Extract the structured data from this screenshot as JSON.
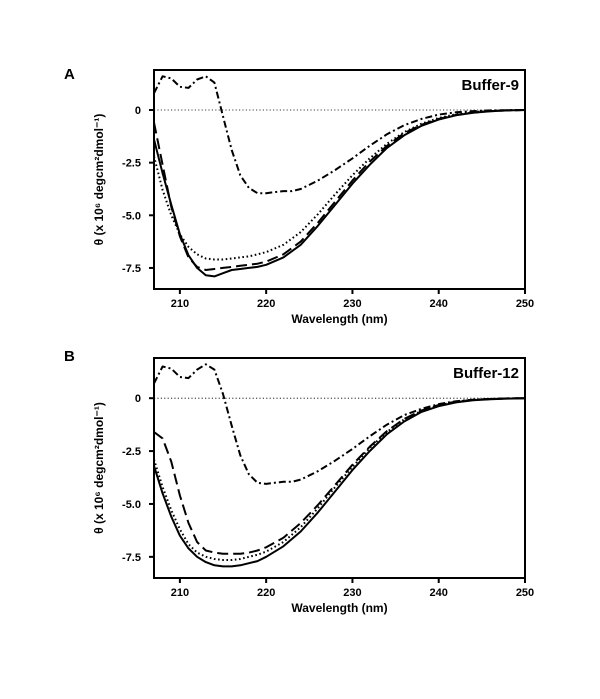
{
  "chart_data": [
    {
      "type": "line",
      "panel": "A",
      "title": "Buffer-9",
      "xlabel": "Wavelength (nm)",
      "ylabel": "θ (x 10⁶ degcm²dmol⁻¹)",
      "xlim": [
        207,
        250
      ],
      "ylim": [
        -8.5,
        1.9
      ],
      "x_ticks": [
        210,
        220,
        230,
        240,
        250
      ],
      "y_ticks": [
        0,
        -2.5,
        -5.0,
        -7.5
      ],
      "y_tick_labels": [
        "0",
        "-2.5",
        "-5.0",
        "-7.5"
      ],
      "series": [
        {
          "name": "solid",
          "style": "solid",
          "x": [
            207,
            208,
            209,
            210,
            211,
            212,
            213,
            214,
            215,
            216,
            217,
            218,
            219,
            220,
            222,
            224,
            226,
            228,
            230,
            232,
            234,
            236,
            238,
            240,
            242,
            244,
            246,
            248,
            250
          ],
          "y": [
            -1.4,
            -3.0,
            -4.5,
            -5.9,
            -6.9,
            -7.5,
            -7.85,
            -7.9,
            -7.75,
            -7.6,
            -7.55,
            -7.5,
            -7.45,
            -7.35,
            -7.0,
            -6.4,
            -5.5,
            -4.5,
            -3.5,
            -2.6,
            -1.8,
            -1.2,
            -0.75,
            -0.45,
            -0.25,
            -0.13,
            -0.06,
            -0.02,
            0.0
          ]
        },
        {
          "name": "dashed",
          "style": "dashed",
          "x": [
            207,
            208,
            209,
            210,
            211,
            212,
            213,
            214,
            215,
            216,
            217,
            218,
            219,
            220,
            222,
            224,
            226,
            228,
            230,
            232,
            234,
            236,
            238,
            240,
            242,
            244,
            246,
            248,
            250
          ],
          "y": [
            -0.6,
            -2.6,
            -4.6,
            -6.0,
            -7.0,
            -7.45,
            -7.6,
            -7.55,
            -7.5,
            -7.45,
            -7.4,
            -7.35,
            -7.3,
            -7.2,
            -6.85,
            -6.25,
            -5.35,
            -4.35,
            -3.35,
            -2.45,
            -1.7,
            -1.1,
            -0.7,
            -0.42,
            -0.23,
            -0.12,
            -0.05,
            -0.02,
            0.0
          ]
        },
        {
          "name": "dotted",
          "style": "dotted",
          "x": [
            207,
            208,
            209,
            210,
            211,
            212,
            213,
            214,
            215,
            216,
            217,
            218,
            219,
            220,
            222,
            224,
            226,
            228,
            230,
            232,
            234,
            236,
            238,
            240,
            242,
            244,
            246,
            248,
            250
          ],
          "y": [
            -2.2,
            -3.8,
            -5.0,
            -5.9,
            -6.5,
            -6.85,
            -7.05,
            -7.1,
            -7.1,
            -7.05,
            -7.0,
            -6.95,
            -6.85,
            -6.75,
            -6.4,
            -5.8,
            -4.95,
            -4.0,
            -3.1,
            -2.3,
            -1.6,
            -1.05,
            -0.65,
            -0.38,
            -0.2,
            -0.1,
            -0.04,
            -0.01,
            0.0
          ]
        },
        {
          "name": "dash-dot",
          "style": "dash-dot",
          "x": [
            207,
            208,
            209,
            210,
            211,
            212,
            213,
            214,
            215,
            216,
            217,
            218,
            219,
            220,
            221,
            222,
            223,
            224,
            226,
            228,
            230,
            232,
            234,
            236,
            238,
            240,
            242,
            244,
            246,
            248,
            250
          ],
          "y": [
            0.8,
            1.6,
            1.5,
            1.1,
            1.05,
            1.45,
            1.6,
            1.3,
            -0.3,
            -1.9,
            -3.1,
            -3.7,
            -3.95,
            -3.95,
            -3.9,
            -3.85,
            -3.85,
            -3.75,
            -3.35,
            -2.85,
            -2.3,
            -1.7,
            -1.15,
            -0.72,
            -0.42,
            -0.22,
            -0.11,
            -0.05,
            -0.02,
            -0.01,
            0.0
          ]
        }
      ]
    },
    {
      "type": "line",
      "panel": "B",
      "title": "Buffer-12",
      "xlabel": "Wavelength (nm)",
      "ylabel": "θ (x 10⁶ degcm²dmol⁻¹)",
      "xlim": [
        207,
        250
      ],
      "ylim": [
        -8.5,
        1.9
      ],
      "x_ticks": [
        210,
        220,
        230,
        240,
        250
      ],
      "y_ticks": [
        0,
        -2.5,
        -5.0,
        -7.5
      ],
      "y_tick_labels": [
        "0",
        "-2.5",
        "-5.0",
        "-7.5"
      ],
      "series": [
        {
          "name": "solid",
          "style": "solid",
          "x": [
            207,
            208,
            209,
            210,
            211,
            212,
            213,
            214,
            215,
            216,
            217,
            218,
            219,
            220,
            222,
            224,
            226,
            228,
            230,
            232,
            234,
            236,
            238,
            240,
            242,
            244,
            246,
            248,
            250
          ],
          "y": [
            -3.2,
            -4.5,
            -5.6,
            -6.5,
            -7.1,
            -7.5,
            -7.75,
            -7.9,
            -7.95,
            -7.95,
            -7.9,
            -7.8,
            -7.7,
            -7.5,
            -7.0,
            -6.3,
            -5.4,
            -4.4,
            -3.4,
            -2.5,
            -1.7,
            -1.1,
            -0.65,
            -0.38,
            -0.2,
            -0.1,
            -0.05,
            -0.02,
            0.0
          ]
        },
        {
          "name": "dashed",
          "style": "dashed",
          "x": [
            207,
            208,
            209,
            210,
            211,
            212,
            213,
            214,
            215,
            216,
            217,
            218,
            219,
            220,
            222,
            224,
            226,
            228,
            230,
            232,
            234,
            236,
            238,
            240,
            242,
            244,
            246,
            248,
            250
          ],
          "y": [
            -1.6,
            -1.9,
            -3.0,
            -4.6,
            -5.9,
            -6.8,
            -7.2,
            -7.3,
            -7.35,
            -7.35,
            -7.35,
            -7.3,
            -7.2,
            -7.05,
            -6.6,
            -5.9,
            -5.05,
            -4.1,
            -3.15,
            -2.3,
            -1.55,
            -0.98,
            -0.58,
            -0.32,
            -0.16,
            -0.08,
            -0.04,
            -0.01,
            0.0
          ]
        },
        {
          "name": "dotted",
          "style": "dotted",
          "x": [
            207,
            208,
            209,
            210,
            211,
            212,
            213,
            214,
            215,
            216,
            217,
            218,
            219,
            220,
            222,
            224,
            226,
            228,
            230,
            232,
            234,
            236,
            238,
            240,
            242,
            244,
            246,
            248,
            250
          ],
          "y": [
            -2.9,
            -4.2,
            -5.3,
            -6.2,
            -6.9,
            -7.3,
            -7.5,
            -7.6,
            -7.65,
            -7.65,
            -7.6,
            -7.5,
            -7.4,
            -7.25,
            -6.8,
            -6.1,
            -5.2,
            -4.2,
            -3.25,
            -2.35,
            -1.6,
            -1.0,
            -0.6,
            -0.33,
            -0.17,
            -0.08,
            -0.04,
            -0.01,
            0.0
          ]
        },
        {
          "name": "dash-dot",
          "style": "dash-dot",
          "x": [
            207,
            208,
            209,
            210,
            211,
            212,
            213,
            214,
            215,
            216,
            217,
            218,
            219,
            220,
            221,
            222,
            223,
            224,
            226,
            228,
            230,
            232,
            234,
            236,
            238,
            240,
            242,
            244,
            246,
            248,
            250
          ],
          "y": [
            0.7,
            1.5,
            1.4,
            1.0,
            0.95,
            1.35,
            1.6,
            1.35,
            0.2,
            -1.3,
            -2.7,
            -3.6,
            -4.0,
            -4.05,
            -4.0,
            -3.95,
            -3.95,
            -3.85,
            -3.45,
            -2.95,
            -2.4,
            -1.8,
            -1.25,
            -0.8,
            -0.5,
            -0.28,
            -0.14,
            -0.07,
            -0.03,
            -0.01,
            0.0
          ]
        }
      ]
    }
  ]
}
